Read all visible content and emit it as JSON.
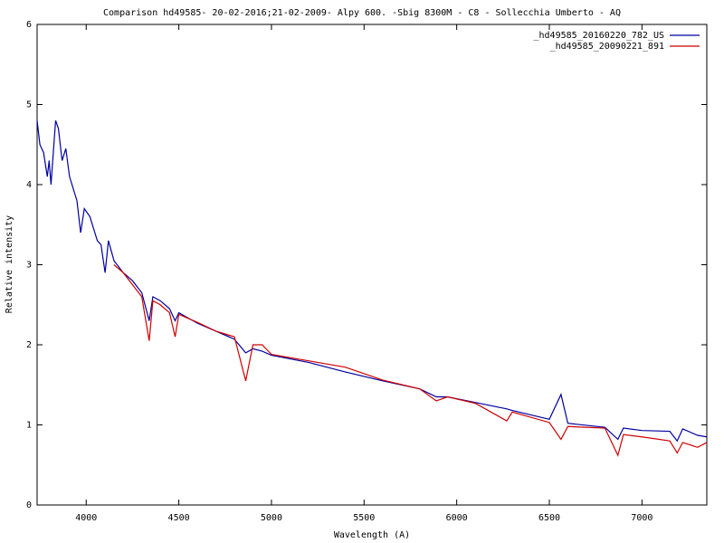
{
  "chart_data": {
    "type": "line",
    "title": "Comparison hd49585- 20-02-2016;21-02-2009- Alpy 600. -Sbig 8300M -  C8  - Sollecchia Umberto - AQ",
    "x_label": "Wavelength (A)",
    "y_label": "Relative intensity",
    "x": [
      3735,
      3750,
      3770,
      3790,
      3800,
      3810,
      3835,
      3850,
      3870,
      3890,
      3910,
      3950,
      3970,
      3990,
      4020,
      4060,
      4080,
      4102,
      4120,
      4150,
      4200,
      4250,
      4300,
      4340,
      4360,
      4400,
      4450,
      4480,
      4500,
      4600,
      4700,
      4800,
      4861,
      4900,
      4950,
      5000,
      5200,
      5400,
      5600,
      5800,
      5890,
      5950,
      6100,
      6270,
      6300,
      6500,
      6563,
      6600,
      6800,
      6870,
      6900,
      7000,
      7150,
      7190,
      7220,
      7300,
      7350
    ],
    "series": [
      {
        "name": "_hd49585_20160220_782_US",
        "color": "#0000a0",
        "values": [
          4.8,
          4.5,
          4.4,
          4.1,
          4.3,
          4.0,
          4.8,
          4.7,
          4.3,
          4.45,
          4.1,
          3.8,
          3.4,
          3.7,
          3.6,
          3.3,
          3.25,
          2.9,
          3.3,
          3.05,
          2.9,
          2.8,
          2.65,
          2.3,
          2.6,
          2.55,
          2.45,
          2.3,
          2.4,
          2.27,
          2.17,
          2.07,
          1.9,
          1.95,
          1.92,
          1.87,
          1.78,
          1.66,
          1.55,
          1.45,
          1.35,
          1.35,
          1.28,
          1.2,
          1.18,
          1.07,
          1.38,
          1.02,
          0.97,
          0.82,
          0.96,
          0.93,
          0.92,
          0.8,
          0.95,
          0.87,
          0.85
        ]
      },
      {
        "name": "_hd49585_20090221_891",
        "color": "#d00000",
        "values": [
          null,
          null,
          null,
          null,
          null,
          null,
          null,
          null,
          null,
          null,
          null,
          null,
          null,
          null,
          null,
          null,
          null,
          null,
          null,
          3.0,
          2.9,
          2.75,
          2.6,
          2.05,
          2.55,
          2.5,
          2.4,
          2.1,
          2.38,
          2.28,
          2.17,
          2.1,
          1.55,
          2.0,
          2.0,
          1.88,
          1.8,
          1.72,
          1.56,
          1.45,
          1.3,
          1.35,
          1.27,
          1.05,
          1.16,
          1.03,
          0.82,
          0.98,
          0.96,
          0.62,
          0.88,
          0.85,
          0.8,
          0.65,
          0.78,
          0.72,
          0.78
        ]
      }
    ],
    "xlim": [
      3735,
      7350
    ],
    "xticks": [
      4000,
      4500,
      5000,
      5500,
      6000,
      6500,
      7000
    ],
    "ylim": [
      0,
      6
    ],
    "yticks": [
      0,
      1,
      2,
      3,
      4,
      5,
      6
    ],
    "grid": false,
    "legend": "top-right"
  }
}
